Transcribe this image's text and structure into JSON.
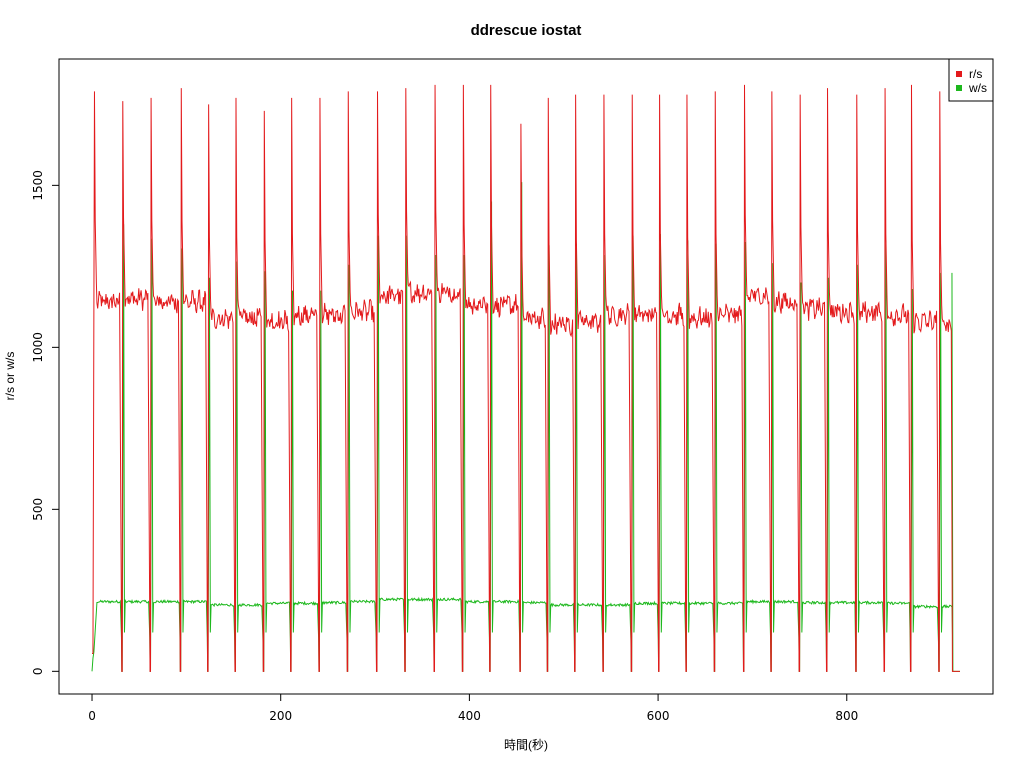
{
  "chart_data": {
    "type": "line",
    "title": "ddrescue iostat",
    "xlabel": "時間(秒)",
    "ylabel": "r/s or w/s",
    "xlim": [
      -35,
      955
    ],
    "ylim": [
      -70,
      1890
    ],
    "x_ticks": [
      0,
      200,
      400,
      600,
      800
    ],
    "y_ticks": [
      0,
      500,
      1000,
      1500
    ],
    "legend_position": "top-right",
    "cycle_starts_x": [
      2,
      32,
      62,
      94,
      123,
      152,
      182,
      211,
      241,
      271,
      302,
      332,
      363,
      393,
      422,
      454,
      483,
      512,
      542,
      572,
      601,
      630,
      660,
      691,
      720,
      750,
      779,
      810,
      840,
      868,
      898
    ],
    "cycle_peaks_r": [
      1790,
      1760,
      1770,
      1800,
      1750,
      1770,
      1730,
      1770,
      1770,
      1790,
      1790,
      1800,
      1810,
      1810,
      1810,
      1690,
      1770,
      1780,
      1780,
      1780,
      1780,
      1780,
      1790,
      1810,
      1790,
      1780,
      1800,
      1780,
      1800,
      1810,
      1790
    ],
    "cycle_base_r": [
      1140,
      1150,
      1140,
      1140,
      1090,
      1090,
      1080,
      1100,
      1100,
      1110,
      1160,
      1170,
      1170,
      1130,
      1130,
      1090,
      1070,
      1080,
      1100,
      1100,
      1100,
      1090,
      1100,
      1160,
      1140,
      1120,
      1110,
      1110,
      1100,
      1080,
      1070
    ],
    "cycle_peaks_w": [
      0,
      1380,
      1335,
      1305,
      1215,
      1265,
      1235,
      1175,
      1175,
      1255,
      1345,
      1345,
      1285,
      1285,
      1450,
      1510,
      1315,
      1320,
      1285,
      1345,
      1350,
      1330,
      1320,
      1325,
      1260,
      1200,
      1215,
      1255,
      1330,
      1180,
      1230
    ],
    "cycle_base_w": [
      215,
      215,
      215,
      215,
      205,
      205,
      210,
      210,
      212,
      215,
      222,
      222,
      222,
      215,
      215,
      212,
      205,
      205,
      205,
      210,
      210,
      210,
      210,
      215,
      215,
      212,
      212,
      212,
      210,
      200,
      200
    ],
    "end_x": 913,
    "series": [
      {
        "name": "r/s",
        "color": "#e31a1c"
      },
      {
        "name": "w/s",
        "color": "#1db81d"
      }
    ]
  }
}
